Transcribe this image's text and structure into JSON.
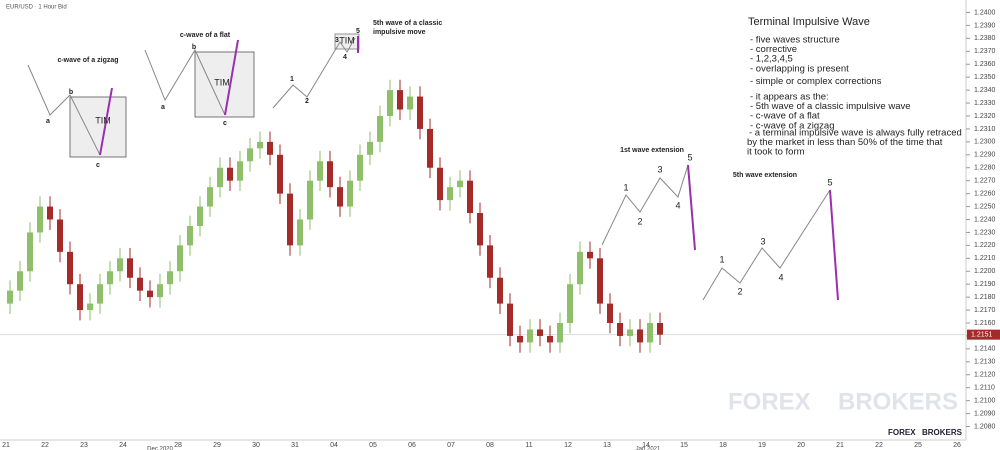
{
  "chart_data": {
    "type": "candlestick",
    "header": "EUR/USD · 1 Hour Bid",
    "up_color": "#8fbf6a",
    "down_color": "#a52a2a",
    "ylim": [
      1.2075,
      1.2405
    ],
    "yticks": [
      {
        "value": 1.208,
        "label": "1.2080"
      },
      {
        "value": 1.209,
        "label": "1.2090"
      },
      {
        "value": 1.21,
        "label": "1.2100"
      },
      {
        "value": 1.211,
        "label": "1.2110"
      },
      {
        "value": 1.212,
        "label": "1.2120"
      },
      {
        "value": 1.213,
        "label": "1.2130"
      },
      {
        "value": 1.214,
        "label": "1.2140"
      },
      {
        "value": 1.215,
        "label": "1.2150"
      },
      {
        "value": 1.216,
        "label": "1.2160"
      },
      {
        "value": 1.217,
        "label": "1.2170"
      },
      {
        "value": 1.218,
        "label": "1.2180"
      },
      {
        "value": 1.219,
        "label": "1.2190"
      },
      {
        "value": 1.22,
        "label": "1.2200"
      },
      {
        "value": 1.221,
        "label": "1.2210"
      },
      {
        "value": 1.222,
        "label": "1.2220"
      },
      {
        "value": 1.223,
        "label": "1.2230"
      },
      {
        "value": 1.224,
        "label": "1.2240"
      },
      {
        "value": 1.225,
        "label": "1.2250"
      },
      {
        "value": 1.226,
        "label": "1.2260"
      },
      {
        "value": 1.227,
        "label": "1.2270"
      },
      {
        "value": 1.228,
        "label": "1.2280"
      },
      {
        "value": 1.229,
        "label": "1.2290"
      },
      {
        "value": 1.23,
        "label": "1.2300"
      },
      {
        "value": 1.231,
        "label": "1.2310"
      },
      {
        "value": 1.232,
        "label": "1.2320"
      },
      {
        "value": 1.233,
        "label": "1.2330"
      },
      {
        "value": 1.234,
        "label": "1.2340"
      },
      {
        "value": 1.235,
        "label": "1.2350"
      },
      {
        "value": 1.236,
        "label": "1.2360"
      },
      {
        "value": 1.237,
        "label": "1.2370"
      },
      {
        "value": 1.238,
        "label": "1.2380"
      },
      {
        "value": 1.239,
        "label": "1.2390"
      },
      {
        "value": 1.24,
        "label": "1.2400"
      }
    ],
    "xtick_labels": [
      "21",
      "22",
      "23",
      "24",
      "28",
      "29",
      "30",
      "31",
      "04",
      "05",
      "06",
      "07",
      "08",
      "11",
      "12",
      "13",
      "14",
      "15",
      "18",
      "19",
      "20",
      "21",
      "22",
      "25",
      "26"
    ],
    "month_labels": [
      "Dec 2020",
      "Jan 2021"
    ],
    "last_price": 1.2151,
    "open": [
      1.2175,
      1.2185,
      1.22,
      1.223,
      1.225,
      1.224,
      1.2215,
      1.219,
      1.217,
      1.2175,
      1.219,
      1.22,
      1.221,
      1.2195,
      1.2185,
      1.218,
      1.219,
      1.22,
      1.222,
      1.2235,
      1.225,
      1.2265,
      1.228,
      1.227,
      1.2285,
      1.2295,
      1.23,
      1.229,
      1.226,
      1.222,
      1.224,
      1.227,
      1.2285,
      1.2265,
      1.225,
      1.227,
      1.229,
      1.23,
      1.232,
      1.234,
      1.2325,
      1.2335,
      1.231,
      1.228,
      1.2255,
      1.2265,
      1.227,
      1.2245,
      1.222,
      1.2195,
      1.2175,
      1.215,
      1.2145,
      1.2155,
      1.215,
      1.2145,
      1.216,
      1.219,
      1.2215,
      1.221,
      1.2175,
      1.216,
      1.215,
      1.2155,
      1.2145,
      1.216
    ],
    "high": [
      1.2193,
      1.2208,
      1.2238,
      1.2258,
      1.2258,
      1.2248,
      1.2223,
      1.2198,
      1.2183,
      1.2198,
      1.2208,
      1.2218,
      1.2218,
      1.2203,
      1.2193,
      1.2198,
      1.2208,
      1.2228,
      1.2243,
      1.2258,
      1.2273,
      1.2288,
      1.2288,
      1.2293,
      1.2303,
      1.2308,
      1.2308,
      1.2298,
      1.2268,
      1.2248,
      1.2278,
      1.2293,
      1.2293,
      1.2273,
      1.2278,
      1.2298,
      1.2308,
      1.2328,
      1.2348,
      1.2348,
      1.2343,
      1.2343,
      1.2318,
      1.2288,
      1.2273,
      1.2278,
      1.2278,
      1.2253,
      1.2228,
      1.2203,
      1.2183,
      1.2158,
      1.2163,
      1.2163,
      1.2158,
      1.2168,
      1.2198,
      1.2223,
      1.2223,
      1.2218,
      1.2183,
      1.2168,
      1.2163,
      1.2163,
      1.2168,
      1.2168
    ],
    "low": [
      1.2167,
      1.2177,
      1.2192,
      1.2222,
      1.2232,
      1.2207,
      1.2182,
      1.2162,
      1.2162,
      1.2167,
      1.2182,
      1.2192,
      1.2187,
      1.2177,
      1.2172,
      1.2172,
      1.2182,
      1.2192,
      1.2212,
      1.2227,
      1.2242,
      1.2257,
      1.2262,
      1.2262,
      1.2277,
      1.2287,
      1.2282,
      1.2252,
      1.2212,
      1.2212,
      1.2232,
      1.2262,
      1.2257,
      1.2242,
      1.2242,
      1.2262,
      1.2282,
      1.2292,
      1.2312,
      1.2317,
      1.2317,
      1.2302,
      1.2272,
      1.2247,
      1.2247,
      1.2257,
      1.2237,
      1.2212,
      1.2187,
      1.2167,
      1.2142,
      1.2137,
      1.2137,
      1.2142,
      1.2137,
      1.2137,
      1.2152,
      1.2182,
      1.2202,
      1.2167,
      1.2152,
      1.2142,
      1.2142,
      1.2137,
      1.2137,
      1.2143
    ],
    "close": [
      1.2185,
      1.22,
      1.223,
      1.225,
      1.224,
      1.2215,
      1.219,
      1.217,
      1.2175,
      1.219,
      1.22,
      1.221,
      1.2195,
      1.2185,
      1.218,
      1.219,
      1.22,
      1.222,
      1.2235,
      1.225,
      1.2265,
      1.228,
      1.227,
      1.2285,
      1.2295,
      1.23,
      1.229,
      1.226,
      1.222,
      1.224,
      1.227,
      1.2285,
      1.2265,
      1.225,
      1.227,
      1.229,
      1.23,
      1.232,
      1.234,
      1.2325,
      1.2335,
      1.231,
      1.228,
      1.2255,
      1.2265,
      1.227,
      1.2245,
      1.222,
      1.2195,
      1.2175,
      1.215,
      1.2145,
      1.2155,
      1.215,
      1.2145,
      1.216,
      1.219,
      1.2215,
      1.221,
      1.2175,
      1.216,
      1.215,
      1.2155,
      1.2145,
      1.216,
      1.2151
    ],
    "annotations": {
      "zigzag": {
        "title": "c-wave of a zigzag",
        "a": "a",
        "b": "b",
        "c": "c",
        "tim": "TIM"
      },
      "flat": {
        "title": "c-wave of a flat",
        "a": "a",
        "b": "b",
        "c": "c",
        "tim": "TIM"
      },
      "classic": {
        "title": [
          "5th wave of a classic",
          "impulsive move"
        ],
        "labels": [
          "1",
          "2",
          "3",
          "4",
          "5"
        ],
        "tim": "TIM"
      },
      "first_extension": {
        "title": "1st wave extension",
        "labels": [
          "1",
          "2",
          "3",
          "4",
          "5"
        ]
      },
      "fifth_extension": {
        "title": "5th wave extension",
        "labels": [
          "1",
          "2",
          "3",
          "4",
          "5"
        ]
      }
    },
    "info": {
      "title": "Terminal Impulsive Wave",
      "lines": [
        "- five waves structure",
        "- corrective",
        "- 1,2,3,4,5",
        "- overlapping is present",
        "- simple or complex corrections",
        "- it appears as the:",
        "- 5th wave of a classic impulsive wave",
        "- c-wave of a flat",
        "- c-wave of a zigzag"
      ],
      "note": [
        "- a terminal impulsive wave is always fully retraced",
        "by the market in less than 50% of the time that",
        "it took to form"
      ]
    },
    "watermark": {
      "left": "FOREX",
      "right": "BROKERS"
    }
  }
}
